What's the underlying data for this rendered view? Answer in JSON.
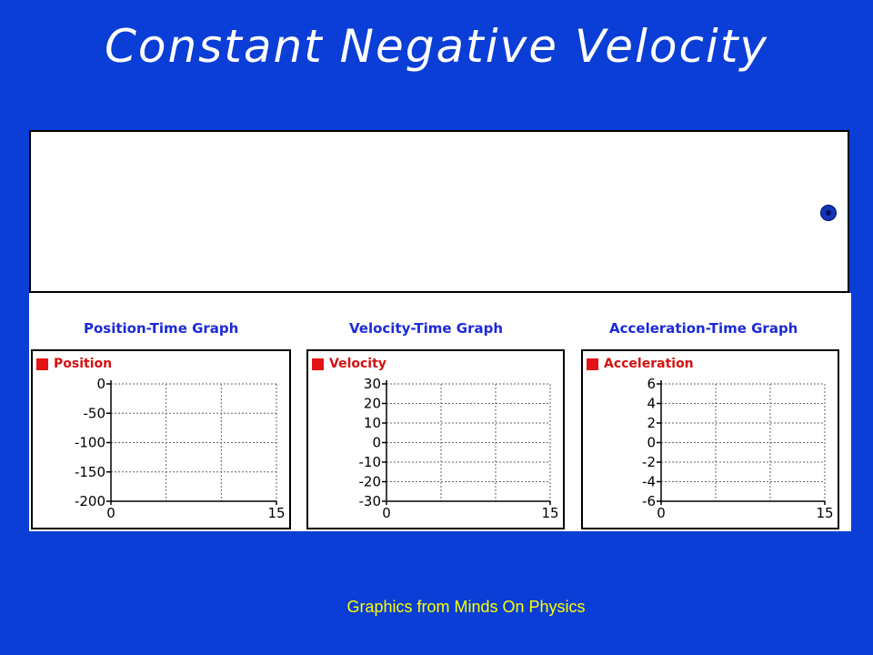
{
  "slide": {
    "title": "Constant Negative Velocity",
    "credit": "Graphics from Minds On Physics"
  },
  "colors": {
    "background": "#0a3ed6",
    "graph_title": "#1c2ad8",
    "legend": "#e41414",
    "ball": "#1236b8"
  },
  "chart_data": [
    {
      "type": "line",
      "title": "Position-Time Graph",
      "series": [
        {
          "name": "Position",
          "values": []
        }
      ],
      "x_ticks": [
        "0",
        "15"
      ],
      "y_ticks": [
        "0",
        "-50",
        "-100",
        "-150",
        "-200"
      ],
      "xlim": [
        0,
        15
      ],
      "ylim": [
        -200,
        0
      ],
      "grid": true
    },
    {
      "type": "line",
      "title": "Velocity-Time Graph",
      "series": [
        {
          "name": "Velocity",
          "values": []
        }
      ],
      "x_ticks": [
        "0",
        "15"
      ],
      "y_ticks": [
        "30",
        "20",
        "10",
        "0",
        "-10",
        "-20",
        "-30"
      ],
      "xlim": [
        0,
        15
      ],
      "ylim": [
        -30,
        30
      ],
      "grid": true
    },
    {
      "type": "line",
      "title": "Acceleration-Time Graph",
      "series": [
        {
          "name": "Acceleration",
          "values": []
        }
      ],
      "x_ticks": [
        "0",
        "15"
      ],
      "y_ticks": [
        "6",
        "4",
        "2",
        "0",
        "-2",
        "-4",
        "-6"
      ],
      "xlim": [
        0,
        15
      ],
      "ylim": [
        -6,
        6
      ],
      "grid": true
    }
  ]
}
